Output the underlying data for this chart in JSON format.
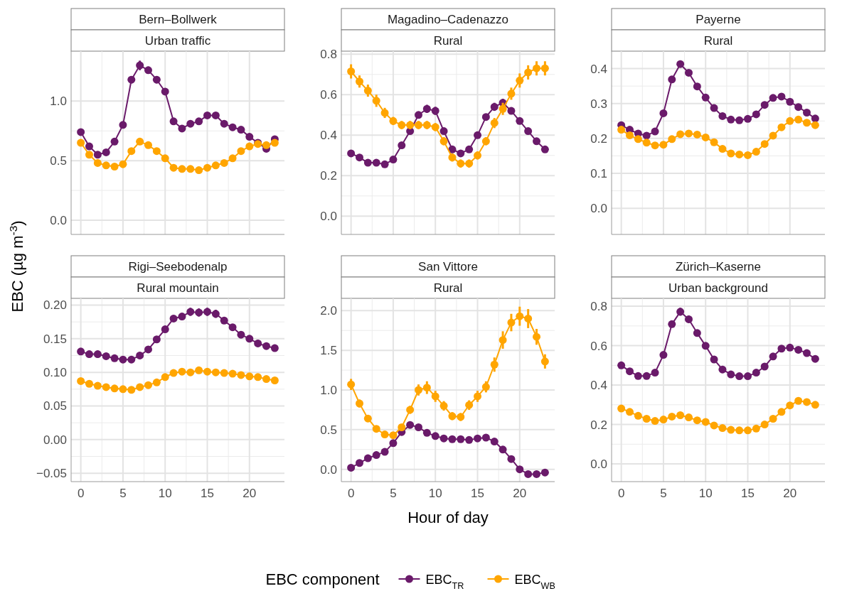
{
  "chart_data": [
    {
      "type": "line",
      "title": "Bern–Bollwerk",
      "subtitle": "Urban traffic",
      "ylabel": "EBC (µg m$^{-3}$)",
      "legend": "bottom",
      "legend_title": "EBC component",
      "x": [
        0,
        1,
        2,
        3,
        4,
        5,
        6,
        7,
        8,
        9,
        10,
        11,
        12,
        13,
        14,
        15,
        16,
        17,
        18,
        19,
        20,
        21,
        22,
        23
      ],
      "xlim": [
        -1.15,
        24.15
      ],
      "xticks": [
        0,
        5,
        10,
        15,
        20
      ],
      "ylim": [
        -0.12,
        1.42
      ],
      "yticks": [
        {
          "value": 0,
          "label": "0.0"
        },
        {
          "value": 0.5,
          "label": "0.5"
        },
        {
          "value": 1,
          "label": "1.0"
        }
      ],
      "grid": true,
      "marker": "circle",
      "tick_labels": "y",
      "series": [
        {
          "name": "EBC$_{TR}$",
          "color": "#6a1a6a",
          "values": [
            0.74,
            0.62,
            0.55,
            0.57,
            0.66,
            0.8,
            1.18,
            1.3,
            1.26,
            1.18,
            1.08,
            0.83,
            0.77,
            0.81,
            0.83,
            0.88,
            0.88,
            0.81,
            0.78,
            0.76,
            0.7,
            0.65,
            0.6,
            0.68
          ],
          "errors": [
            0.02,
            0.02,
            0.02,
            0.02,
            0.02,
            0.02,
            0.03,
            0.04,
            0.03,
            0.03,
            0.03,
            0.02,
            0.02,
            0.02,
            0.02,
            0.02,
            0.02,
            0.02,
            0.02,
            0.02,
            0.02,
            0.02,
            0.02,
            0.02
          ]
        },
        {
          "name": "EBC$_{WB}$",
          "color": "#ffa500",
          "values": [
            0.65,
            0.55,
            0.48,
            0.46,
            0.45,
            0.47,
            0.58,
            0.66,
            0.63,
            0.58,
            0.52,
            0.44,
            0.43,
            0.43,
            0.42,
            0.44,
            0.46,
            0.48,
            0.52,
            0.58,
            0.62,
            0.64,
            0.63,
            0.65
          ],
          "errors": [
            0.015,
            0.015,
            0.015,
            0.015,
            0.015,
            0.015,
            0.015,
            0.015,
            0.015,
            0.015,
            0.015,
            0.015,
            0.015,
            0.015,
            0.015,
            0.015,
            0.015,
            0.015,
            0.015,
            0.015,
            0.015,
            0.015,
            0.015,
            0.015
          ]
        }
      ]
    },
    {
      "type": "line",
      "title": "Magadino–Cadenazzo",
      "subtitle": "Rural",
      "x": [
        0,
        1,
        2,
        3,
        4,
        5,
        6,
        7,
        8,
        9,
        10,
        11,
        12,
        13,
        14,
        15,
        16,
        17,
        18,
        19,
        20,
        21,
        22,
        23
      ],
      "xlim": [
        -1.15,
        24.15
      ],
      "xticks": [
        0,
        5,
        10,
        15,
        20
      ],
      "ylim": [
        -0.09,
        0.815
      ],
      "yticks": [
        {
          "value": 0,
          "label": "0.0"
        },
        {
          "value": 0.2,
          "label": "0.2"
        },
        {
          "value": 0.4,
          "label": "0.4"
        },
        {
          "value": 0.6,
          "label": "0.6"
        },
        {
          "value": 0.8,
          "label": "0.8"
        }
      ],
      "grid": true,
      "marker": "circle",
      "tick_labels": "y",
      "series": [
        {
          "color": "#6a1a6a",
          "values": [
            0.31,
            0.29,
            0.264,
            0.264,
            0.256,
            0.28,
            0.35,
            0.42,
            0.5,
            0.53,
            0.52,
            0.42,
            0.33,
            0.31,
            0.33,
            0.4,
            0.49,
            0.54,
            0.56,
            0.52,
            0.47,
            0.42,
            0.37,
            0.33
          ],
          "errors": [
            0.015,
            0.015,
            0.015,
            0.015,
            0.015,
            0.015,
            0.015,
            0.015,
            0.015,
            0.02,
            0.02,
            0.015,
            0.015,
            0.015,
            0.015,
            0.015,
            0.015,
            0.02,
            0.02,
            0.015,
            0.015,
            0.015,
            0.015,
            0.015
          ]
        },
        {
          "color": "#ffa500",
          "values": [
            0.715,
            0.665,
            0.62,
            0.57,
            0.51,
            0.47,
            0.45,
            0.45,
            0.45,
            0.45,
            0.44,
            0.37,
            0.29,
            0.26,
            0.26,
            0.3,
            0.37,
            0.46,
            0.53,
            0.605,
            0.67,
            0.71,
            0.73,
            0.73
          ],
          "errors": [
            0.035,
            0.03,
            0.03,
            0.03,
            0.025,
            0.02,
            0.02,
            0.02,
            0.02,
            0.02,
            0.02,
            0.02,
            0.02,
            0.02,
            0.02,
            0.02,
            0.02,
            0.025,
            0.03,
            0.03,
            0.035,
            0.035,
            0.035,
            0.035
          ]
        }
      ]
    },
    {
      "type": "line",
      "title": "Payerne",
      "subtitle": "Rural",
      "x": [
        0,
        1,
        2,
        3,
        4,
        5,
        6,
        7,
        8,
        9,
        10,
        11,
        12,
        13,
        14,
        15,
        16,
        17,
        18,
        19,
        20,
        21,
        22,
        23
      ],
      "xlim": [
        -1.15,
        24.15
      ],
      "xticks": [
        0,
        5,
        10,
        15,
        20
      ],
      "ylim": [
        -0.075,
        0.45
      ],
      "yticks": [
        {
          "value": 0,
          "label": "0.0"
        },
        {
          "value": 0.1,
          "label": "0.1"
        },
        {
          "value": 0.2,
          "label": "0.2"
        },
        {
          "value": 0.3,
          "label": "0.3"
        },
        {
          "value": 0.4,
          "label": "0.4"
        }
      ],
      "grid": true,
      "marker": "circle",
      "tick_labels": "y",
      "series": [
        {
          "color": "#6a1a6a",
          "values": [
            0.238,
            0.225,
            0.214,
            0.208,
            0.22,
            0.272,
            0.369,
            0.413,
            0.388,
            0.349,
            0.317,
            0.287,
            0.264,
            0.254,
            0.252,
            0.256,
            0.269,
            0.296,
            0.316,
            0.32,
            0.305,
            0.29,
            0.274,
            0.257
          ],
          "errors": [
            0.006,
            0.006,
            0.006,
            0.006,
            0.006,
            0.006,
            0.008,
            0.009,
            0.008,
            0.007,
            0.006,
            0.006,
            0.006,
            0.006,
            0.006,
            0.006,
            0.006,
            0.006,
            0.006,
            0.006,
            0.006,
            0.006,
            0.006,
            0.006
          ]
        },
        {
          "color": "#ffa500",
          "values": [
            0.225,
            0.209,
            0.198,
            0.188,
            0.18,
            0.182,
            0.198,
            0.212,
            0.214,
            0.211,
            0.203,
            0.189,
            0.17,
            0.157,
            0.154,
            0.152,
            0.162,
            0.184,
            0.208,
            0.232,
            0.25,
            0.254,
            0.245,
            0.238
          ],
          "errors": [
            0.004,
            0.004,
            0.004,
            0.004,
            0.004,
            0.004,
            0.004,
            0.004,
            0.004,
            0.004,
            0.004,
            0.004,
            0.004,
            0.004,
            0.004,
            0.004,
            0.004,
            0.004,
            0.004,
            0.004,
            0.004,
            0.004,
            0.004,
            0.004
          ]
        }
      ]
    },
    {
      "type": "line",
      "title": "Rigi–Seebodenalp",
      "subtitle": "Rural mountain",
      "x": [
        0,
        1,
        2,
        3,
        4,
        5,
        6,
        7,
        8,
        9,
        10,
        11,
        12,
        13,
        14,
        15,
        16,
        17,
        18,
        19,
        20,
        21,
        22,
        23
      ],
      "xlim": [
        -1.15,
        24.15
      ],
      "xticks": [
        0,
        5,
        10,
        15,
        20
      ],
      "ylim": [
        -0.0625,
        0.21
      ],
      "yticks": [
        {
          "value": -0.05,
          "label": "−0.05"
        },
        {
          "value": 0,
          "label": "0.00"
        },
        {
          "value": 0.05,
          "label": "0.05"
        },
        {
          "value": 0.1,
          "label": "0.10"
        },
        {
          "value": 0.15,
          "label": "0.15"
        },
        {
          "value": 0.2,
          "label": "0.20"
        }
      ],
      "grid": true,
      "marker": "circle",
      "series": [
        {
          "color": "#6a1a6a",
          "values": [
            0.131,
            0.127,
            0.127,
            0.124,
            0.121,
            0.119,
            0.119,
            0.125,
            0.134,
            0.149,
            0.164,
            0.18,
            0.183,
            0.19,
            0.189,
            0.19,
            0.187,
            0.177,
            0.167,
            0.156,
            0.15,
            0.143,
            0.139,
            0.136
          ],
          "errors": [
            0.005,
            0.005,
            0.005,
            0.005,
            0.005,
            0.005,
            0.005,
            0.005,
            0.005,
            0.005,
            0.005,
            0.005,
            0.005,
            0.006,
            0.006,
            0.006,
            0.006,
            0.005,
            0.005,
            0.005,
            0.005,
            0.005,
            0.005,
            0.005
          ]
        },
        {
          "color": "#ffa500",
          "values": [
            0.087,
            0.083,
            0.08,
            0.078,
            0.076,
            0.075,
            0.074,
            0.078,
            0.081,
            0.085,
            0.093,
            0.099,
            0.101,
            0.1,
            0.103,
            0.101,
            0.1,
            0.099,
            0.098,
            0.096,
            0.094,
            0.093,
            0.09,
            0.088
          ],
          "errors": [
            0.003,
            0.003,
            0.003,
            0.003,
            0.003,
            0.003,
            0.003,
            0.003,
            0.003,
            0.003,
            0.003,
            0.003,
            0.003,
            0.003,
            0.003,
            0.003,
            0.003,
            0.003,
            0.003,
            0.003,
            0.003,
            0.003,
            0.003,
            0.003
          ]
        }
      ]
    },
    {
      "type": "line",
      "title": "San Vittore",
      "subtitle": "Rural",
      "xlabel": "Hour of day",
      "x": [
        0,
        1,
        2,
        3,
        4,
        5,
        6,
        7,
        8,
        9,
        10,
        11,
        12,
        13,
        14,
        15,
        16,
        17,
        18,
        19,
        20,
        21,
        22,
        23
      ],
      "xlim": [
        -1.15,
        24.15
      ],
      "xticks": [
        0,
        5,
        10,
        15,
        20
      ],
      "ylim": [
        -0.155,
        2.155
      ],
      "yticks": [
        {
          "value": 0,
          "label": "0.0"
        },
        {
          "value": 0.5,
          "label": "0.5"
        },
        {
          "value": 1,
          "label": "1.0"
        },
        {
          "value": 1.5,
          "label": "1.5"
        },
        {
          "value": 2,
          "label": "2.0"
        }
      ],
      "grid": true,
      "marker": "circle",
      "series": [
        {
          "color": "#6a1a6a",
          "values": [
            0.02,
            0.08,
            0.14,
            0.18,
            0.22,
            0.33,
            0.47,
            0.56,
            0.53,
            0.46,
            0.42,
            0.39,
            0.38,
            0.38,
            0.37,
            0.39,
            0.4,
            0.35,
            0.25,
            0.13,
            0.0,
            -0.06,
            -0.06,
            -0.04
          ],
          "errors": [
            0.02,
            0.02,
            0.02,
            0.02,
            0.02,
            0.02,
            0.02,
            0.02,
            0.02,
            0.02,
            0.02,
            0.02,
            0.02,
            0.02,
            0.02,
            0.02,
            0.02,
            0.02,
            0.02,
            0.02,
            0.02,
            0.02,
            0.02,
            0.02
          ]
        },
        {
          "color": "#ffa500",
          "values": [
            1.07,
            0.83,
            0.64,
            0.51,
            0.44,
            0.43,
            0.53,
            0.75,
            1.0,
            1.03,
            0.92,
            0.8,
            0.67,
            0.66,
            0.81,
            0.92,
            1.04,
            1.32,
            1.63,
            1.85,
            1.93,
            1.9,
            1.67,
            1.36
          ],
          "errors": [
            0.07,
            0.05,
            0.04,
            0.03,
            0.03,
            0.03,
            0.03,
            0.05,
            0.07,
            0.08,
            0.07,
            0.06,
            0.05,
            0.05,
            0.06,
            0.07,
            0.07,
            0.09,
            0.11,
            0.11,
            0.12,
            0.12,
            0.1,
            0.09
          ]
        }
      ]
    },
    {
      "type": "line",
      "title": "Zürich–Kaserne",
      "subtitle": "Urban background",
      "x": [
        0,
        1,
        2,
        3,
        4,
        5,
        6,
        7,
        8,
        9,
        10,
        11,
        12,
        13,
        14,
        15,
        16,
        17,
        18,
        19,
        20,
        21,
        22,
        23
      ],
      "xlim": [
        -1.15,
        24.15
      ],
      "xticks": [
        0,
        5,
        10,
        15,
        20
      ],
      "ylim": [
        -0.09,
        0.84
      ],
      "yticks": [
        {
          "value": 0,
          "label": "0.0"
        },
        {
          "value": 0.2,
          "label": "0.2"
        },
        {
          "value": 0.4,
          "label": "0.4"
        },
        {
          "value": 0.6,
          "label": "0.6"
        },
        {
          "value": 0.8,
          "label": "0.8"
        }
      ],
      "grid": true,
      "marker": "circle",
      "series": [
        {
          "color": "#6a1a6a",
          "values": [
            0.5,
            0.47,
            0.446,
            0.446,
            0.463,
            0.553,
            0.709,
            0.772,
            0.734,
            0.664,
            0.599,
            0.53,
            0.479,
            0.454,
            0.445,
            0.445,
            0.463,
            0.494,
            0.545,
            0.585,
            0.59,
            0.579,
            0.562,
            0.533
          ],
          "errors": [
            0.012,
            0.012,
            0.012,
            0.012,
            0.012,
            0.012,
            0.015,
            0.02,
            0.018,
            0.015,
            0.012,
            0.012,
            0.012,
            0.012,
            0.012,
            0.012,
            0.012,
            0.012,
            0.012,
            0.012,
            0.012,
            0.012,
            0.012,
            0.012
          ]
        },
        {
          "color": "#ffa500",
          "values": [
            0.281,
            0.264,
            0.244,
            0.229,
            0.218,
            0.225,
            0.24,
            0.247,
            0.236,
            0.221,
            0.213,
            0.195,
            0.182,
            0.173,
            0.17,
            0.17,
            0.179,
            0.2,
            0.229,
            0.264,
            0.297,
            0.32,
            0.314,
            0.3
          ],
          "errors": [
            0.008,
            0.008,
            0.008,
            0.008,
            0.008,
            0.008,
            0.008,
            0.008,
            0.008,
            0.008,
            0.008,
            0.008,
            0.008,
            0.008,
            0.008,
            0.008,
            0.008,
            0.008,
            0.008,
            0.008,
            0.008,
            0.008,
            0.008,
            0.008
          ]
        }
      ]
    }
  ]
}
